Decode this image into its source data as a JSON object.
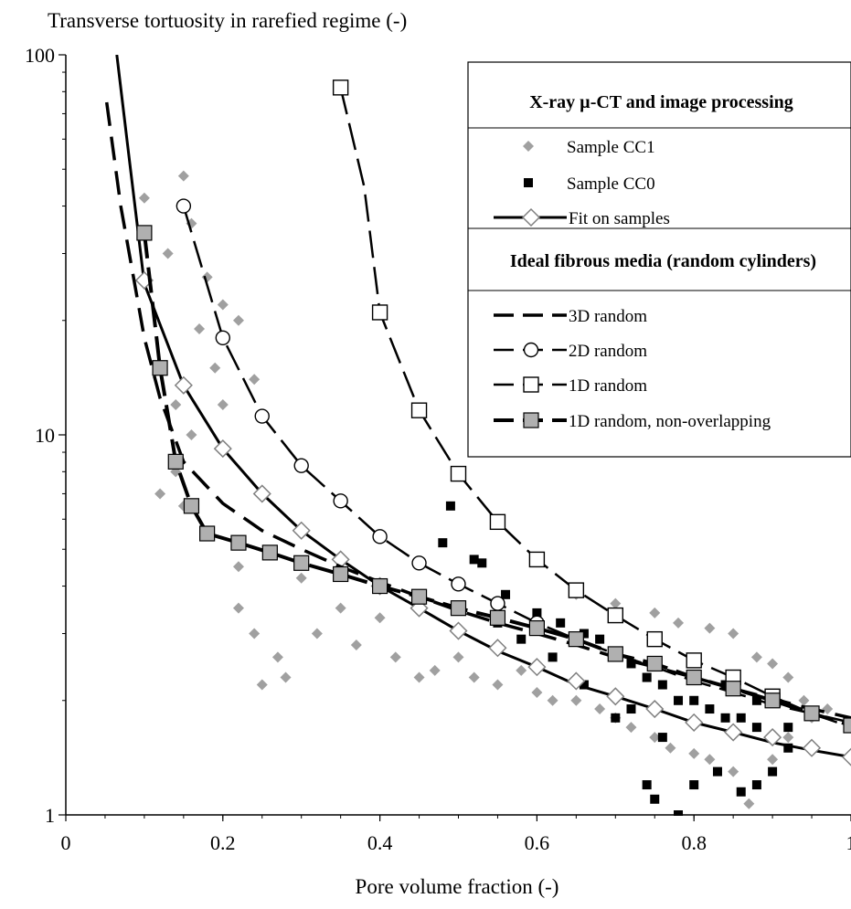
{
  "chart_data": {
    "type": "scatter",
    "title": "",
    "ylabel": "Transverse tortuosity in rarefied regime (-)",
    "xlabel": "Pore volume fraction (-)",
    "x_ticks": [
      "0",
      "0.2",
      "0.4",
      "0.6",
      "0.8",
      "1"
    ],
    "y_ticks": [
      "1",
      "10",
      "100"
    ],
    "xlim": [
      0,
      1
    ],
    "ylim": [
      1,
      100
    ],
    "y_scale": "log",
    "grid": false,
    "legend_placement": "top-right",
    "legend": {
      "heading1": "X-ray µ-CT and image processing",
      "heading2": "Ideal fibrous media (random cylinders)",
      "entries": [
        {
          "label": "Sample CC1",
          "series": "cc1"
        },
        {
          "label": "Sample CC0",
          "series": "cc0"
        },
        {
          "label": "Fit on samples",
          "series": "fit"
        },
        {
          "label": "3D random",
          "series": "r3d"
        },
        {
          "label": "2D random",
          "series": "r2d"
        },
        {
          "label": "1D random",
          "series": "r1d"
        },
        {
          "label": "1D random, non-overlapping",
          "series": "r1dno"
        }
      ]
    },
    "series": [
      {
        "id": "cc1",
        "name": "Sample CC1",
        "kind": "cloud",
        "color": "#a0a0a0",
        "points": [
          [
            0.1,
            42
          ],
          [
            0.15,
            48
          ],
          [
            0.16,
            36
          ],
          [
            0.13,
            30
          ],
          [
            0.18,
            26
          ],
          [
            0.2,
            22
          ],
          [
            0.22,
            20
          ],
          [
            0.17,
            19
          ],
          [
            0.19,
            15
          ],
          [
            0.2,
            12
          ],
          [
            0.24,
            14
          ],
          [
            0.14,
            12
          ],
          [
            0.16,
            10
          ],
          [
            0.14,
            8
          ],
          [
            0.12,
            7
          ],
          [
            0.15,
            6.5
          ],
          [
            0.22,
            4.5
          ],
          [
            0.22,
            3.5
          ],
          [
            0.24,
            3.0
          ],
          [
            0.27,
            2.6
          ],
          [
            0.28,
            2.3
          ],
          [
            0.25,
            2.2
          ],
          [
            0.3,
            4.2
          ],
          [
            0.32,
            3.0
          ],
          [
            0.35,
            3.5
          ],
          [
            0.37,
            2.8
          ],
          [
            0.4,
            3.3
          ],
          [
            0.42,
            2.6
          ],
          [
            0.45,
            2.3
          ],
          [
            0.47,
            2.4
          ],
          [
            0.5,
            2.6
          ],
          [
            0.52,
            2.3
          ],
          [
            0.55,
            2.2
          ],
          [
            0.58,
            2.4
          ],
          [
            0.6,
            2.1
          ],
          [
            0.62,
            2.0
          ],
          [
            0.65,
            2.0
          ],
          [
            0.68,
            1.9
          ],
          [
            0.7,
            1.8
          ],
          [
            0.72,
            1.7
          ],
          [
            0.75,
            1.6
          ],
          [
            0.77,
            1.5
          ],
          [
            0.8,
            1.45
          ],
          [
            0.82,
            1.4
          ],
          [
            0.85,
            1.3
          ],
          [
            0.87,
            1.07
          ],
          [
            0.9,
            1.4
          ],
          [
            0.92,
            1.6
          ],
          [
            0.95,
            1.8
          ],
          [
            0.97,
            1.9
          ],
          [
            0.75,
            3.4
          ],
          [
            0.78,
            3.2
          ],
          [
            0.82,
            3.1
          ],
          [
            0.85,
            3.0
          ],
          [
            0.88,
            2.6
          ],
          [
            0.9,
            2.5
          ],
          [
            0.92,
            2.3
          ],
          [
            0.94,
            2.0
          ],
          [
            0.7,
            3.6
          ],
          [
            0.65,
            3.8
          ]
        ]
      },
      {
        "id": "cc0",
        "name": "Sample CC0",
        "kind": "cloud",
        "color": "#000000",
        "points": [
          [
            0.49,
            6.5
          ],
          [
            0.48,
            5.2
          ],
          [
            0.52,
            4.7
          ],
          [
            0.53,
            4.6
          ],
          [
            0.56,
            3.8
          ],
          [
            0.6,
            3.4
          ],
          [
            0.63,
            3.2
          ],
          [
            0.66,
            3.0
          ],
          [
            0.68,
            2.9
          ],
          [
            0.7,
            2.7
          ],
          [
            0.72,
            2.5
          ],
          [
            0.74,
            2.3
          ],
          [
            0.76,
            2.2
          ],
          [
            0.78,
            2.0
          ],
          [
            0.8,
            2.0
          ],
          [
            0.82,
            1.9
          ],
          [
            0.84,
            1.8
          ],
          [
            0.86,
            1.8
          ],
          [
            0.88,
            1.7
          ],
          [
            0.9,
            1.6
          ],
          [
            0.92,
            1.7
          ],
          [
            0.74,
            1.2
          ],
          [
            0.75,
            1.1
          ],
          [
            0.78,
            1.0
          ],
          [
            0.8,
            1.2
          ],
          [
            0.83,
            1.3
          ],
          [
            0.86,
            1.15
          ],
          [
            0.88,
            1.2
          ],
          [
            0.9,
            1.3
          ],
          [
            0.7,
            1.8
          ],
          [
            0.66,
            2.2
          ],
          [
            0.62,
            2.6
          ],
          [
            0.58,
            2.9
          ],
          [
            0.55,
            3.2
          ],
          [
            0.8,
            2.3
          ],
          [
            0.84,
            2.2
          ],
          [
            0.88,
            2.0
          ],
          [
            0.92,
            1.5
          ],
          [
            0.76,
            1.6
          ],
          [
            0.72,
            1.9
          ]
        ]
      },
      {
        "id": "fit",
        "name": "Fit on samples",
        "kind": "line",
        "dash": "solid",
        "marker": "diamond",
        "curve": [
          [
            0.065,
            100
          ],
          [
            0.08,
            55
          ],
          [
            0.1,
            25
          ],
          [
            0.15,
            13.5
          ],
          [
            0.2,
            9.2
          ],
          [
            0.25,
            7.0
          ],
          [
            0.3,
            5.6
          ],
          [
            0.35,
            4.7
          ],
          [
            0.4,
            4.0
          ],
          [
            0.45,
            3.5
          ],
          [
            0.5,
            3.05
          ],
          [
            0.55,
            2.7
          ],
          [
            0.6,
            2.45
          ],
          [
            0.65,
            2.2
          ],
          [
            0.7,
            2.05
          ],
          [
            0.75,
            1.9
          ],
          [
            0.8,
            1.75
          ],
          [
            0.85,
            1.65
          ],
          [
            0.9,
            1.55
          ],
          [
            0.95,
            1.48
          ],
          [
            1.0,
            1.42
          ]
        ],
        "markers": [
          [
            0.1,
            25.5
          ],
          [
            0.15,
            13.5
          ],
          [
            0.2,
            9.2
          ],
          [
            0.25,
            7.0
          ],
          [
            0.3,
            5.6
          ],
          [
            0.35,
            4.7
          ],
          [
            0.4,
            4.0
          ],
          [
            0.45,
            3.5
          ],
          [
            0.5,
            3.05
          ],
          [
            0.55,
            2.75
          ],
          [
            0.6,
            2.45
          ],
          [
            0.65,
            2.25
          ],
          [
            0.7,
            2.05
          ],
          [
            0.75,
            1.9
          ],
          [
            0.8,
            1.75
          ],
          [
            0.85,
            1.65
          ],
          [
            0.9,
            1.6
          ],
          [
            0.95,
            1.5
          ],
          [
            1.0,
            1.42
          ]
        ]
      },
      {
        "id": "r3d",
        "name": "3D random",
        "kind": "line",
        "dash": "dashed",
        "marker": "none",
        "curve": [
          [
            0.052,
            75
          ],
          [
            0.07,
            40
          ],
          [
            0.1,
            18
          ],
          [
            0.12,
            12.5
          ],
          [
            0.15,
            8.5
          ],
          [
            0.2,
            6.6
          ],
          [
            0.25,
            5.6
          ],
          [
            0.3,
            5.0
          ],
          [
            0.35,
            4.5
          ],
          [
            0.4,
            4.1
          ],
          [
            0.45,
            3.75
          ],
          [
            0.5,
            3.45
          ],
          [
            0.55,
            3.2
          ],
          [
            0.6,
            3.0
          ],
          [
            0.65,
            2.8
          ],
          [
            0.7,
            2.6
          ],
          [
            0.75,
            2.45
          ],
          [
            0.8,
            2.3
          ],
          [
            0.85,
            2.15
          ],
          [
            0.9,
            2.02
          ],
          [
            0.95,
            1.9
          ],
          [
            1.0,
            1.8
          ]
        ],
        "markers": []
      },
      {
        "id": "r2d",
        "name": "2D random",
        "kind": "line",
        "dash": "longdash",
        "marker": "circle",
        "curve": [
          [
            0.15,
            40
          ],
          [
            0.2,
            18
          ],
          [
            0.25,
            11.2
          ],
          [
            0.3,
            8.3
          ],
          [
            0.35,
            6.7
          ],
          [
            0.4,
            5.4
          ],
          [
            0.45,
            4.6
          ],
          [
            0.5,
            4.05
          ],
          [
            0.55,
            3.6
          ],
          [
            0.6,
            3.2
          ],
          [
            0.65,
            2.9
          ],
          [
            0.7,
            2.65
          ],
          [
            0.75,
            2.45
          ],
          [
            0.8,
            2.25
          ],
          [
            0.85,
            2.1
          ],
          [
            0.9,
            1.95
          ],
          [
            0.95,
            1.85
          ],
          [
            1.0,
            1.75
          ]
        ],
        "markers": [
          [
            0.15,
            40
          ],
          [
            0.2,
            18
          ],
          [
            0.25,
            11.2
          ],
          [
            0.3,
            8.3
          ],
          [
            0.35,
            6.7
          ],
          [
            0.4,
            5.4
          ],
          [
            0.45,
            4.6
          ],
          [
            0.5,
            4.05
          ],
          [
            0.55,
            3.6
          ],
          [
            0.6,
            3.2
          ]
        ]
      },
      {
        "id": "r1d",
        "name": "1D random",
        "kind": "line",
        "dash": "longdash",
        "marker": "square-open",
        "curve": [
          [
            0.35,
            82
          ],
          [
            0.38,
            45
          ],
          [
            0.4,
            21
          ],
          [
            0.45,
            11.6
          ],
          [
            0.5,
            7.9
          ],
          [
            0.55,
            5.9
          ],
          [
            0.6,
            4.7
          ],
          [
            0.65,
            3.9
          ],
          [
            0.7,
            3.35
          ],
          [
            0.75,
            2.9
          ],
          [
            0.8,
            2.55
          ],
          [
            0.85,
            2.3
          ],
          [
            0.9,
            2.05
          ],
          [
            0.95,
            1.85
          ],
          [
            1.0,
            1.7
          ]
        ],
        "markers": [
          [
            0.35,
            82
          ],
          [
            0.4,
            21
          ],
          [
            0.45,
            11.6
          ],
          [
            0.5,
            7.9
          ],
          [
            0.55,
            5.9
          ],
          [
            0.6,
            4.7
          ],
          [
            0.65,
            3.9
          ],
          [
            0.7,
            3.35
          ],
          [
            0.75,
            2.9
          ],
          [
            0.8,
            2.55
          ],
          [
            0.85,
            2.3
          ],
          [
            0.9,
            2.05
          ]
        ]
      },
      {
        "id": "r1dno",
        "name": "1D random, non-overlapping",
        "kind": "line",
        "dash": "boldlongdash",
        "marker": "square-gray",
        "curve": [
          [
            0.1,
            34
          ],
          [
            0.12,
            15
          ],
          [
            0.14,
            8.5
          ],
          [
            0.16,
            6.5
          ],
          [
            0.18,
            5.5
          ],
          [
            0.22,
            5.2
          ],
          [
            0.26,
            4.9
          ],
          [
            0.3,
            4.6
          ],
          [
            0.35,
            4.3
          ],
          [
            0.4,
            4.0
          ],
          [
            0.45,
            3.75
          ],
          [
            0.5,
            3.5
          ],
          [
            0.55,
            3.3
          ],
          [
            0.6,
            3.1
          ],
          [
            0.65,
            2.9
          ],
          [
            0.7,
            2.65
          ],
          [
            0.75,
            2.5
          ],
          [
            0.8,
            2.3
          ],
          [
            0.85,
            2.15
          ],
          [
            0.9,
            2.0
          ],
          [
            0.95,
            1.85
          ],
          [
            1.0,
            1.72
          ]
        ],
        "markers": [
          [
            0.1,
            34
          ],
          [
            0.12,
            15
          ],
          [
            0.14,
            8.5
          ],
          [
            0.16,
            6.5
          ],
          [
            0.18,
            5.5
          ],
          [
            0.22,
            5.2
          ],
          [
            0.26,
            4.9
          ],
          [
            0.3,
            4.6
          ],
          [
            0.35,
            4.3
          ],
          [
            0.4,
            4.0
          ],
          [
            0.45,
            3.75
          ],
          [
            0.5,
            3.5
          ],
          [
            0.55,
            3.3
          ],
          [
            0.6,
            3.1
          ],
          [
            0.65,
            2.9
          ],
          [
            0.7,
            2.65
          ],
          [
            0.75,
            2.5
          ],
          [
            0.8,
            2.3
          ],
          [
            0.85,
            2.15
          ],
          [
            0.9,
            2.0
          ],
          [
            0.95,
            1.85
          ],
          [
            1.0,
            1.72
          ]
        ]
      }
    ]
  }
}
